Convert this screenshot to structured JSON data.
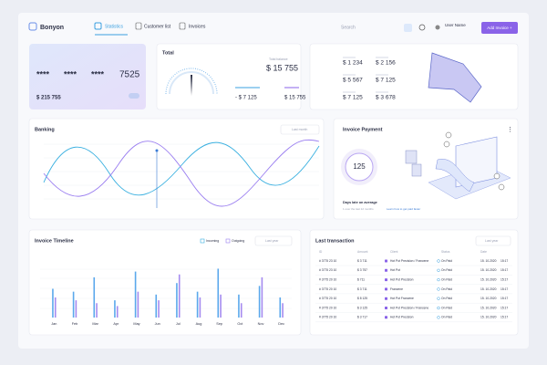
{
  "header": {
    "logo": "Bonyon",
    "nav": [
      "Statistics",
      "Customer list",
      "Invoices"
    ],
    "search": "Search",
    "user": "User Name",
    "button": "Add Invoice +"
  },
  "card": {
    "groups": [
      "****",
      "****",
      "****",
      "7525"
    ],
    "balance": "$ 215 755"
  },
  "total": {
    "title": "Total",
    "label": "Total balance",
    "amount": "$ 15 755",
    "left": "- $ 7 125",
    "right": "$ 15 755"
  },
  "stats": {
    "values": [
      "$ 1 234",
      "$ 2 156",
      "$ 5 567",
      "$ 7 125",
      "$ 7 125",
      "$ 3 678"
    ]
  },
  "banking": {
    "title": "Banking",
    "filter": "Last month"
  },
  "payment": {
    "title": "Invoice Payment",
    "value": "125",
    "caption": "Days late on average",
    "note": "1 over the last 12 months",
    "link": "Learn how to get paid faster"
  },
  "timeline": {
    "title": "Invoice Timeline",
    "legend": [
      "Incoming",
      "Outgoing"
    ],
    "filter": "Last year",
    "months": [
      "Jan",
      "Feb",
      "Mar",
      "Apr",
      "May",
      "Jun",
      "Jul",
      "Aug",
      "Sep",
      "Oct",
      "Nov",
      "Dec"
    ],
    "incoming": [
      50,
      45,
      70,
      30,
      80,
      40,
      60,
      45,
      85,
      40,
      55,
      35
    ],
    "outgoing": [
      35,
      30,
      25,
      20,
      45,
      30,
      75,
      35,
      40,
      25,
      70,
      25
    ]
  },
  "transactions": {
    "title": "Last transaction",
    "filter": "Last year",
    "columns": [
      "ID",
      "Amount",
      "Client",
      "Status",
      "Date"
    ],
    "rows": [
      [
        "# 3775 23 10",
        "$ 3 711",
        "Hot Pot Precision / Francene",
        "On Paid",
        "15. 10.2020",
        "15:17"
      ],
      [
        "# 3775 23 10",
        "$ 3 757",
        "Hot Pot",
        "On Paid",
        "15. 10.2020",
        "15:17"
      ],
      [
        "# 3775 20 10",
        "$ 711",
        "Hot Pot Precision",
        "On Paid",
        "15. 10.2020",
        "15:17"
      ],
      [
        "# 3775 20 10",
        "$ 3 711",
        "Francene",
        "On Paid",
        "15. 10.2020",
        "15:17"
      ],
      [
        "# 3775 20 10",
        "$ 8 125",
        "Hot Pot Francene",
        "On Paid",
        "15. 10.2020",
        "15:17"
      ],
      [
        "# 3775 20 10",
        "$ 3 125",
        "Hot Pot Precision / Francene",
        "On Paid",
        "15. 10.2020",
        "15:17"
      ],
      [
        "# 3775 20 10",
        "$ 3 717",
        "Hot Pot Precision",
        "On Paid",
        "15. 10.2020",
        "15:17"
      ]
    ]
  }
}
